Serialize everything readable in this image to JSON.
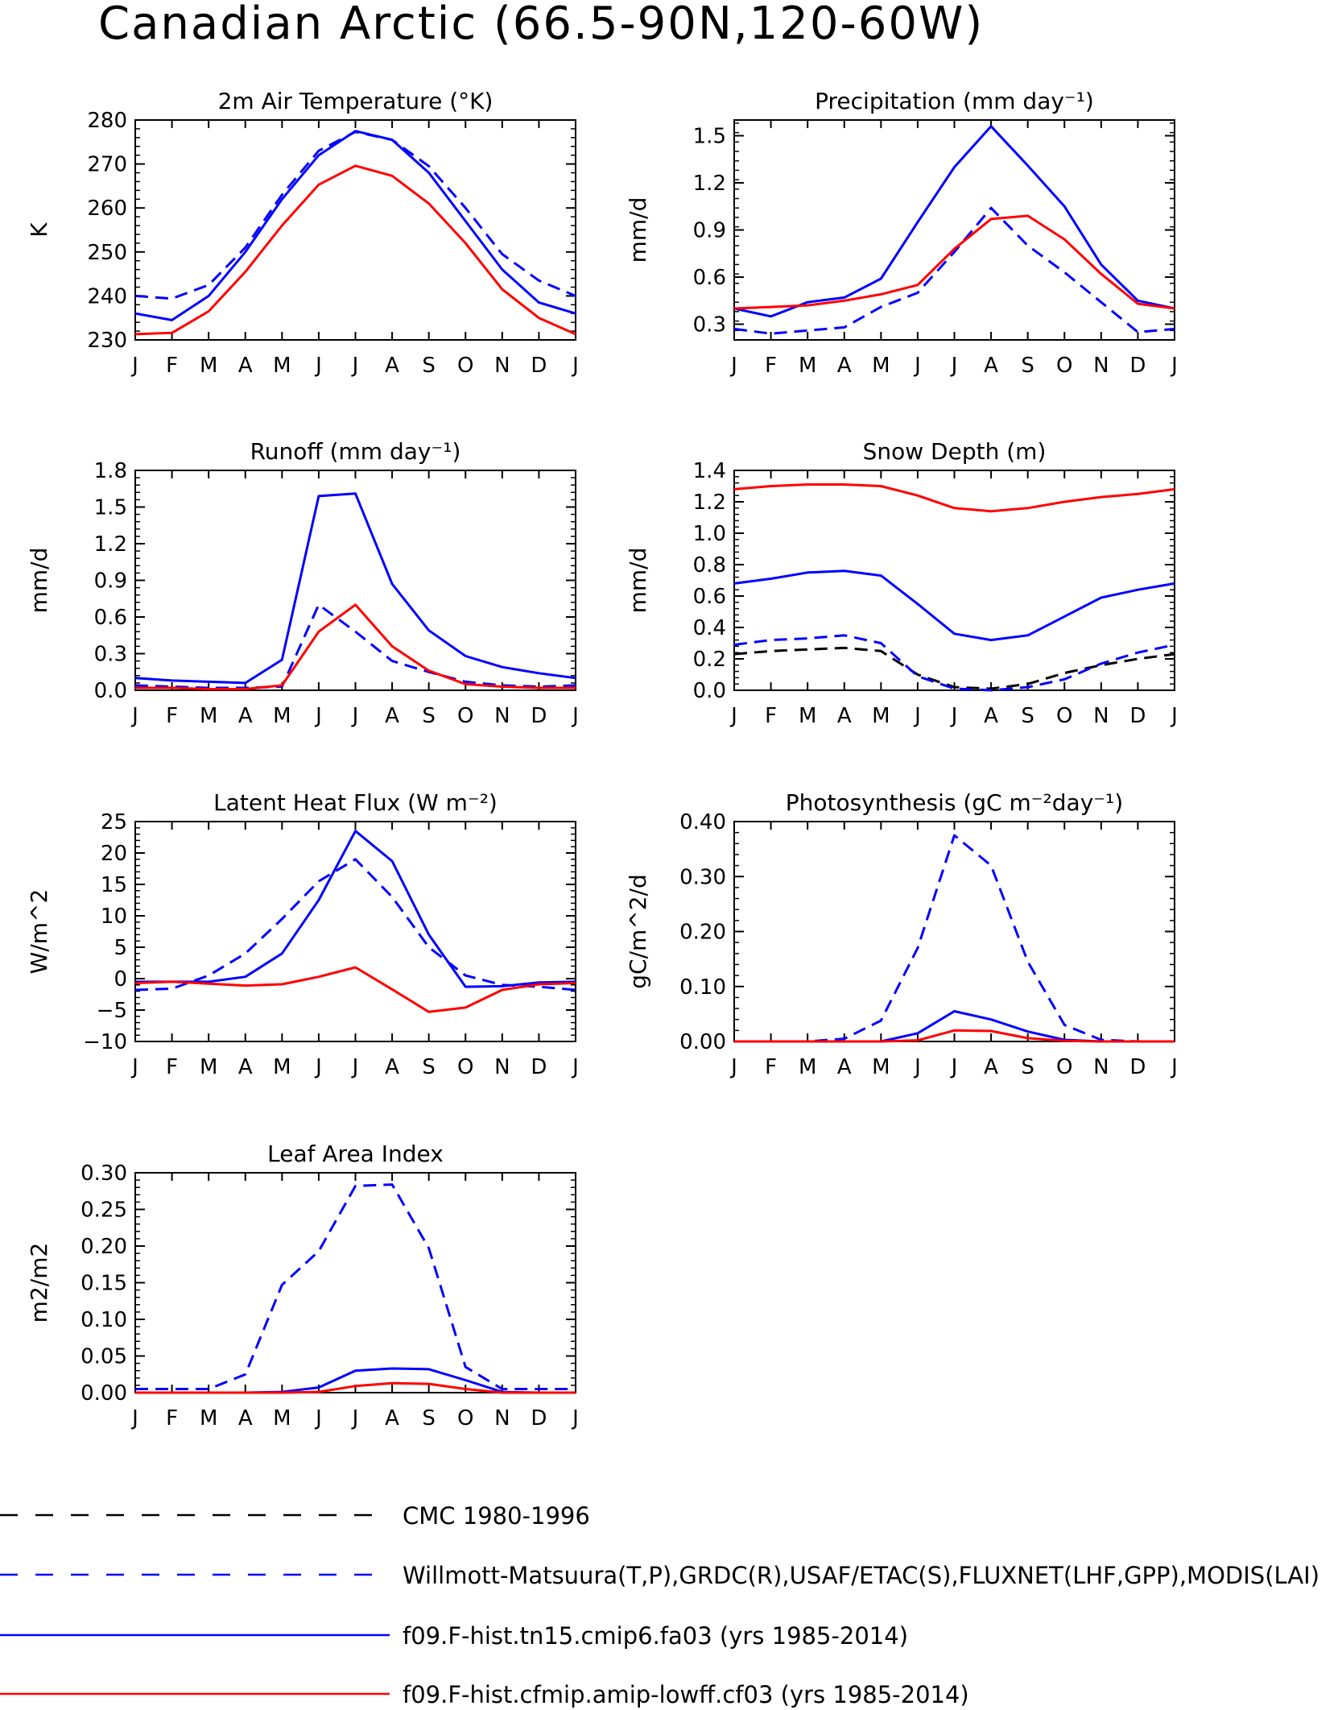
{
  "title": "Canadian Arctic (66.5-90N,120-60W)",
  "months": [
    "J",
    "F",
    "M",
    "A",
    "M",
    "J",
    "J",
    "A",
    "S",
    "O",
    "N",
    "D",
    "J"
  ],
  "colors": {
    "obs": "#0000ff",
    "model1": "#0000ff",
    "model2": "#ff0000",
    "cmc": "#000000"
  },
  "legend": [
    {
      "label": "CMC 1980-1996",
      "color": "#000000",
      "style": "dashed"
    },
    {
      "label": "Willmott-Matsuura(T,P),GRDC(R),USAF/ETAC(S),FLUXNET(LHF,GPP),MODIS(LAI)",
      "color": "#0000ff",
      "style": "dashed"
    },
    {
      "label": "f09.F-hist.tn15.cmip6.fa03 (yrs 1985-2014)",
      "color": "#0000ff",
      "style": "solid"
    },
    {
      "label": "f09.F-hist.cfmip.amip-lowff.cf03 (yrs 1985-2014)",
      "color": "#ff0000",
      "style": "solid"
    }
  ],
  "chart_data": [
    {
      "type": "line",
      "title": "2m Air Temperature (°K)",
      "ylabel": "K",
      "ylim": [
        230,
        280
      ],
      "yticks": [
        230,
        240,
        250,
        260,
        270,
        280
      ],
      "yticklabels": [
        "230",
        "240",
        "250",
        "260",
        "270",
        "280"
      ],
      "series": [
        {
          "style": "dashed",
          "color": "#0000ff",
          "values": [
            240.0,
            239.4,
            242.5,
            251.0,
            263.0,
            273.0,
            277.3,
            275.5,
            269.5,
            260.0,
            249.5,
            243.5,
            240.0
          ]
        },
        {
          "style": "solid",
          "color": "#0000ff",
          "values": [
            236.0,
            234.5,
            240.0,
            250.0,
            262.0,
            272.0,
            277.5,
            275.5,
            268.0,
            257.0,
            246.0,
            238.5,
            236.0
          ]
        },
        {
          "style": "solid",
          "color": "#ff0000",
          "values": [
            231.3,
            231.6,
            236.5,
            245.5,
            256.0,
            265.3,
            269.6,
            267.3,
            261.0,
            252.0,
            241.5,
            235.0,
            231.3
          ]
        }
      ]
    },
    {
      "type": "line",
      "title": "Precipitation (mm day⁻¹)",
      "ylabel": "mm/d",
      "ylim": [
        0.2,
        1.6
      ],
      "yticks": [
        0.3,
        0.6,
        0.9,
        1.2,
        1.5
      ],
      "yticklabels": [
        "0.3",
        "0.6",
        "0.9",
        "1.2",
        "1.5"
      ],
      "series": [
        {
          "style": "dashed",
          "color": "#0000ff",
          "values": [
            0.27,
            0.24,
            0.26,
            0.28,
            0.41,
            0.5,
            0.76,
            1.04,
            0.8,
            0.63,
            0.44,
            0.25,
            0.27
          ]
        },
        {
          "style": "solid",
          "color": "#0000ff",
          "values": [
            0.4,
            0.35,
            0.44,
            0.47,
            0.59,
            0.95,
            1.3,
            1.56,
            1.31,
            1.05,
            0.68,
            0.45,
            0.4
          ]
        },
        {
          "style": "solid",
          "color": "#ff0000",
          "values": [
            0.4,
            0.41,
            0.42,
            0.45,
            0.49,
            0.55,
            0.78,
            0.97,
            0.99,
            0.84,
            0.62,
            0.43,
            0.4
          ]
        }
      ]
    },
    {
      "type": "line",
      "title": "Runoff (mm day⁻¹)",
      "ylabel": "mm/d",
      "ylim": [
        0.0,
        1.8
      ],
      "yticks": [
        0.0,
        0.3,
        0.6,
        0.9,
        1.2,
        1.5,
        1.8
      ],
      "yticklabels": [
        "0.0",
        "0.3",
        "0.6",
        "0.9",
        "1.2",
        "1.5",
        "1.8"
      ],
      "series": [
        {
          "style": "dashed",
          "color": "#0000ff",
          "values": [
            0.04,
            0.03,
            0.02,
            0.02,
            0.03,
            0.7,
            0.48,
            0.24,
            0.15,
            0.07,
            0.04,
            0.03,
            0.04
          ]
        },
        {
          "style": "solid",
          "color": "#0000ff",
          "values": [
            0.1,
            0.08,
            0.07,
            0.06,
            0.25,
            1.59,
            1.61,
            0.87,
            0.49,
            0.28,
            0.19,
            0.14,
            0.1
          ]
        },
        {
          "style": "solid",
          "color": "#ff0000",
          "values": [
            0.02,
            0.02,
            0.01,
            0.01,
            0.04,
            0.48,
            0.7,
            0.36,
            0.16,
            0.05,
            0.03,
            0.02,
            0.02
          ]
        }
      ]
    },
    {
      "type": "line",
      "title": "Snow Depth (m)",
      "ylabel": "mm/d",
      "ylim": [
        0.0,
        1.4
      ],
      "yticks": [
        0.0,
        0.2,
        0.4,
        0.6,
        0.8,
        1.0,
        1.2,
        1.4
      ],
      "yticklabels": [
        "0.0",
        "0.2",
        "0.4",
        "0.6",
        "0.8",
        "1.0",
        "1.2",
        "1.4"
      ],
      "series": [
        {
          "style": "dashed",
          "color": "#000000",
          "values": [
            0.23,
            0.25,
            0.26,
            0.27,
            0.25,
            0.1,
            0.02,
            0.01,
            0.04,
            0.11,
            0.16,
            0.2,
            0.23
          ]
        },
        {
          "style": "dashed",
          "color": "#0000ff",
          "values": [
            0.29,
            0.32,
            0.33,
            0.35,
            0.3,
            0.09,
            0.01,
            0.0,
            0.02,
            0.07,
            0.17,
            0.24,
            0.29
          ]
        },
        {
          "style": "solid",
          "color": "#0000ff",
          "values": [
            0.68,
            0.71,
            0.75,
            0.76,
            0.73,
            0.55,
            0.36,
            0.32,
            0.35,
            0.47,
            0.59,
            0.64,
            0.68
          ]
        },
        {
          "style": "solid",
          "color": "#ff0000",
          "values": [
            1.28,
            1.3,
            1.31,
            1.31,
            1.3,
            1.24,
            1.16,
            1.14,
            1.16,
            1.2,
            1.23,
            1.25,
            1.28
          ]
        }
      ]
    },
    {
      "type": "line",
      "title": "Latent Heat Flux (W m⁻²)",
      "ylabel": "W/m^2",
      "ylim": [
        -10,
        25
      ],
      "yticks": [
        -10,
        -5,
        0,
        5,
        10,
        15,
        20,
        25
      ],
      "yticklabels": [
        "−10",
        "−5",
        "0",
        "5",
        "10",
        "15",
        "20",
        "25"
      ],
      "series": [
        {
          "style": "dashed",
          "color": "#0000ff",
          "values": [
            -1.8,
            -1.6,
            0.5,
            4.0,
            9.5,
            15.5,
            19.0,
            13.0,
            5.0,
            0.5,
            -1.0,
            -1.3,
            -1.8
          ]
        },
        {
          "style": "solid",
          "color": "#0000ff",
          "values": [
            -0.5,
            -0.5,
            -0.5,
            0.3,
            4.0,
            12.5,
            23.5,
            18.7,
            7.0,
            -1.3,
            -1.2,
            -0.6,
            -0.5
          ]
        },
        {
          "style": "solid",
          "color": "#ff0000",
          "values": [
            -0.7,
            -0.5,
            -0.8,
            -1.1,
            -0.9,
            0.3,
            1.8,
            -1.7,
            -5.3,
            -4.6,
            -1.8,
            -0.9,
            -0.7
          ]
        }
      ]
    },
    {
      "type": "line",
      "title": "Photosynthesis (gC m⁻²day⁻¹)",
      "ylabel": "gC/m^2/d",
      "ylim": [
        0.0,
        0.4
      ],
      "yticks": [
        0.0,
        0.1,
        0.2,
        0.3,
        0.4
      ],
      "yticklabels": [
        "0.00",
        "0.10",
        "0.20",
        "0.30",
        "0.40"
      ],
      "series": [
        {
          "style": "dashed",
          "color": "#0000ff",
          "values": [
            0.0,
            0.0,
            0.0,
            0.005,
            0.038,
            0.17,
            0.375,
            0.32,
            0.145,
            0.03,
            0.003,
            0.0,
            0.0
          ]
        },
        {
          "style": "solid",
          "color": "#0000ff",
          "values": [
            0.0,
            0.0,
            0.0,
            0.0,
            0.0,
            0.015,
            0.055,
            0.04,
            0.018,
            0.003,
            0.0,
            0.0,
            0.0
          ]
        },
        {
          "style": "solid",
          "color": "#ff0000",
          "values": [
            0.0,
            0.0,
            0.0,
            0.0,
            0.0,
            0.002,
            0.02,
            0.019,
            0.006,
            0.001,
            0.0,
            0.0,
            0.0
          ]
        }
      ]
    },
    {
      "type": "line",
      "title": "Leaf Area Index",
      "ylabel": "m2/m2",
      "ylim": [
        0.0,
        0.3
      ],
      "yticks": [
        0.0,
        0.05,
        0.1,
        0.15,
        0.2,
        0.25,
        0.3
      ],
      "yticklabels": [
        "0.00",
        "0.05",
        "0.10",
        "0.15",
        "0.20",
        "0.25",
        "0.30"
      ],
      "series": [
        {
          "style": "dashed",
          "color": "#0000ff",
          "values": [
            0.005,
            0.005,
            0.005,
            0.025,
            0.147,
            0.193,
            0.282,
            0.284,
            0.197,
            0.035,
            0.005,
            0.005,
            0.005
          ]
        },
        {
          "style": "solid",
          "color": "#0000ff",
          "values": [
            0.0,
            0.0,
            0.0,
            0.0,
            0.001,
            0.007,
            0.03,
            0.033,
            0.032,
            0.017,
            0.001,
            0.0,
            0.0
          ]
        },
        {
          "style": "solid",
          "color": "#ff0000",
          "values": [
            0.0,
            0.0,
            0.0,
            0.0,
            0.0,
            0.001,
            0.009,
            0.013,
            0.012,
            0.005,
            0.0,
            0.0,
            0.0
          ]
        }
      ]
    }
  ]
}
